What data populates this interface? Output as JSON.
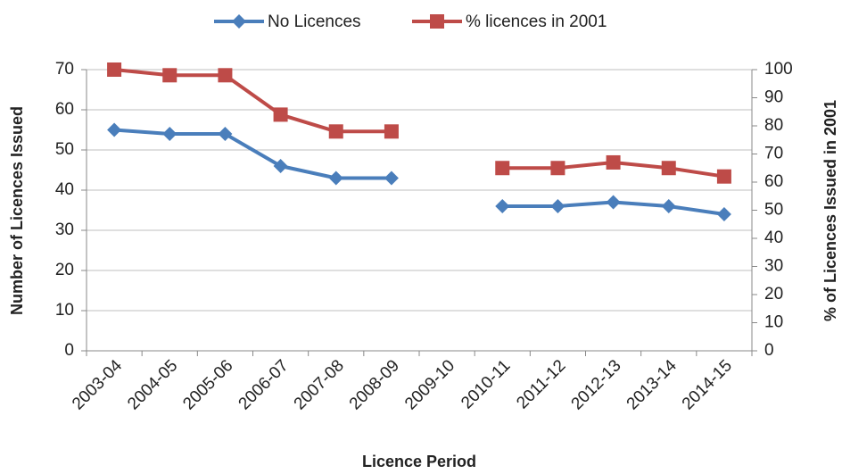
{
  "chart_data": {
    "type": "line",
    "xlabel": "Licence Period",
    "ylabel": "Number of Licences Issued",
    "y2label": "% of Licences Issued in 2001",
    "categories": [
      "2003-04",
      "2004-05",
      "2005-06",
      "2006-07",
      "2007-08",
      "2008-09",
      "2009-10",
      "2010-11",
      "2011-12",
      "2012-13",
      "2013-14",
      "2014-15"
    ],
    "series": [
      {
        "name": "No Licences",
        "color": "#4a7ebb",
        "marker": "diamond",
        "values": [
          55,
          54,
          54,
          46,
          43,
          43,
          null,
          36,
          36,
          37,
          36,
          34
        ]
      },
      {
        "name": "% licences in 2001",
        "color": "#be4b48",
        "marker": "square",
        "axis": "y2",
        "values": [
          100,
          98,
          98,
          84,
          78,
          78,
          null,
          65,
          65,
          67,
          65,
          62
        ]
      }
    ],
    "ylim": [
      0,
      70
    ],
    "yticks": [
      0,
      10,
      20,
      30,
      40,
      50,
      60,
      70
    ],
    "y2lim": [
      0,
      100
    ],
    "y2ticks": [
      0,
      10,
      20,
      30,
      40,
      50,
      60,
      70,
      80,
      90,
      100
    ],
    "grid": true,
    "legend": "top"
  }
}
